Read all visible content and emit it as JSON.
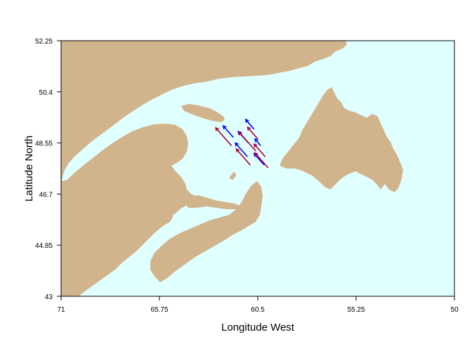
{
  "axes": {
    "xlabel": "Longitude West",
    "ylabel": "Latitude North",
    "xticks": [
      "71",
      "65.75",
      "60.5",
      "55.25",
      "50"
    ],
    "yticks": [
      "52.25",
      "50.4",
      "48.55",
      "46.7",
      "44.85",
      "43"
    ],
    "xlim": [
      71,
      50
    ],
    "ylim": [
      43,
      52.25
    ]
  },
  "colors": {
    "water": "#e0ffff",
    "land": "#d2b48c",
    "arrow_blue": "#0000ff",
    "arrow_red": "#b0003a"
  },
  "chart_data": {
    "type": "vector-map",
    "title": "",
    "xlabel": "Longitude West",
    "ylabel": "Latitude North",
    "xlim": [
      71,
      50
    ],
    "ylim": [
      43,
      52.25
    ],
    "grid": false,
    "vectors": [
      {
        "lon": 61.8,
        "lat": 48.75,
        "color": "blue",
        "dlon": 0.55,
        "dlat": 0.42
      },
      {
        "lon": 61.9,
        "lat": 48.45,
        "color": "red",
        "dlon": 0.85,
        "dlat": 0.65
      },
      {
        "lon": 60.7,
        "lat": 49.05,
        "color": "blue",
        "dlon": 0.45,
        "dlat": 0.35
      },
      {
        "lon": 60.5,
        "lat": 48.7,
        "color": "red",
        "dlon": 0.55,
        "dlat": 0.42
      },
      {
        "lon": 61.0,
        "lat": 48.55,
        "color": "blue",
        "dlon": 0.55,
        "dlat": 0.42
      },
      {
        "lon": 60.6,
        "lat": 48.25,
        "color": "red",
        "dlon": 0.9,
        "dlat": 0.7
      },
      {
        "lon": 60.35,
        "lat": 48.45,
        "color": "blue",
        "dlon": 0.3,
        "dlat": 0.25
      },
      {
        "lon": 60.1,
        "lat": 48.05,
        "color": "red",
        "dlon": 0.6,
        "dlat": 0.46
      },
      {
        "lon": 61.05,
        "lat": 48.05,
        "color": "blue",
        "dlon": 0.65,
        "dlat": 0.5
      },
      {
        "lon": 60.9,
        "lat": 47.75,
        "color": "red",
        "dlon": 0.75,
        "dlat": 0.58
      },
      {
        "lon": 60.15,
        "lat": 47.75,
        "color": "blue",
        "dlon": 0.55,
        "dlat": 0.42
      },
      {
        "lon": 59.95,
        "lat": 47.65,
        "color": "red",
        "dlon": 0.7,
        "dlat": 0.54
      }
    ]
  }
}
